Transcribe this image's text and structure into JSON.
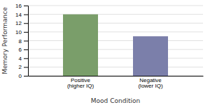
{
  "chart_data": {
    "type": "bar",
    "xlabel": "Mood Condition",
    "ylabel": "Memory Performance",
    "categories": [
      "Positive\n(higher IQ)",
      "Negative\n(lower IQ)"
    ],
    "values": [
      14,
      9
    ],
    "colors": [
      "#7a9e6a",
      "#7b7faa"
    ],
    "ylim": [
      0,
      16
    ],
    "yticks": [
      0,
      2,
      4,
      6,
      8,
      10,
      12,
      14,
      16
    ],
    "grid": true
  }
}
